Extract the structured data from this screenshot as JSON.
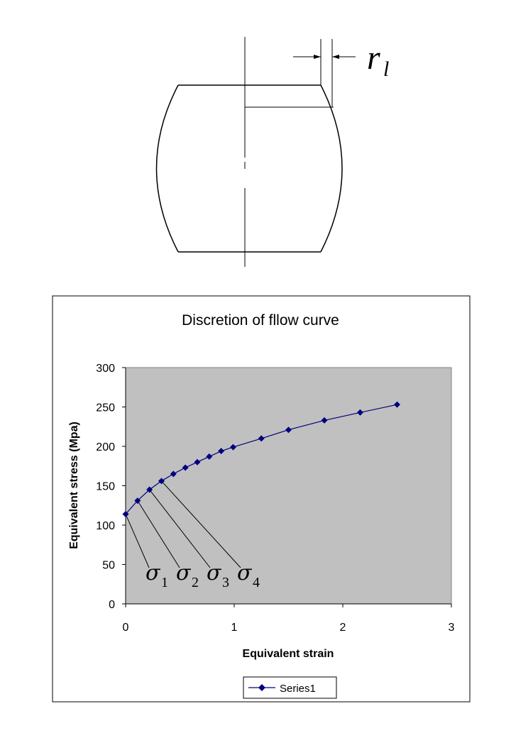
{
  "diagram": {
    "dimension_label": "r",
    "dimension_sub": "l"
  },
  "chart_data": {
    "type": "line",
    "title": "Discretion of fllow curve",
    "xlabel": "Equivalent strain",
    "ylabel": "Equivalent stress (Mpa)",
    "xlim": [
      0,
      3
    ],
    "ylim": [
      0,
      300
    ],
    "xticks": [
      "0",
      "1",
      "2",
      "3"
    ],
    "yticks": [
      "0",
      "50",
      "100",
      "150",
      "200",
      "250",
      "300"
    ],
    "grid": false,
    "plot_background": "#c0c0c0",
    "legend_position": "bottom",
    "series": [
      {
        "name": "Series1",
        "color": "#000080",
        "marker": "diamond",
        "x": [
          0,
          0.11,
          0.22,
          0.33,
          0.44,
          0.55,
          0.66,
          0.77,
          0.88,
          0.99,
          1.25,
          1.5,
          1.83,
          2.16,
          2.5
        ],
        "y": [
          114,
          131,
          145,
          156,
          165,
          173,
          180,
          187,
          194,
          199,
          210,
          221,
          233,
          243,
          253
        ]
      }
    ],
    "annotations": [
      {
        "symbol": "σ",
        "sub": "1",
        "point_index": 0
      },
      {
        "symbol": "σ",
        "sub": "2",
        "point_index": 1
      },
      {
        "symbol": "σ",
        "sub": "3",
        "point_index": 2
      },
      {
        "symbol": "σ",
        "sub": "4",
        "point_index": 3
      }
    ]
  }
}
